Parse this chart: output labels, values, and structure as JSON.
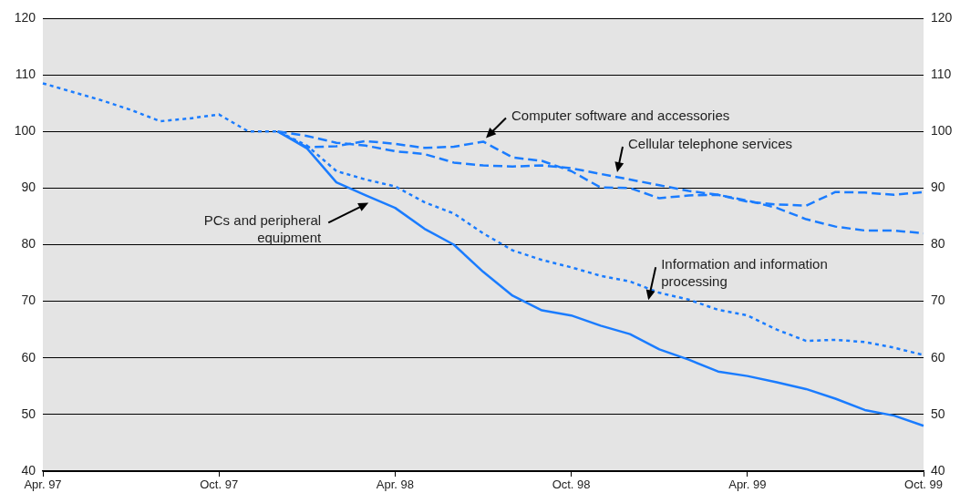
{
  "chart_data": {
    "type": "line",
    "categories": [
      "Apr. 97",
      null,
      null,
      null,
      null,
      null,
      "Oct. 97",
      null,
      null,
      null,
      null,
      null,
      "Apr. 98",
      null,
      null,
      null,
      null,
      null,
      "Oct. 98",
      null,
      null,
      null,
      null,
      null,
      "Apr. 99",
      null,
      null,
      null,
      null,
      null,
      "Oct. 99"
    ],
    "series": [
      {
        "name": "Computer software and accessories",
        "color": "#1a7cff",
        "line_style": "dashed",
        "values": [
          null,
          null,
          null,
          null,
          null,
          null,
          null,
          null,
          100,
          97.2,
          97.4,
          98.3,
          97.8,
          97.1,
          97.3,
          98.2,
          95.4,
          94.8,
          93,
          90.1,
          90,
          88.2,
          88.7,
          88.8,
          87.6,
          87.1,
          86.9,
          89.3,
          89.2,
          88.8,
          89.3
        ]
      },
      {
        "name": "Cellular telephone services",
        "color": "#1a7cff",
        "line_style": "dashed",
        "values": [
          null,
          null,
          null,
          null,
          null,
          null,
          null,
          null,
          100,
          99.2,
          98,
          97.5,
          96.5,
          96,
          94.5,
          94,
          93.8,
          94,
          93.5,
          92.5,
          91.5,
          90.5,
          89.5,
          88.8,
          87.8,
          86.5,
          84.5,
          83.2,
          82.5,
          82.5,
          82
        ]
      },
      {
        "name": "PCs and peripheral equipment",
        "color": "#1a7cff",
        "line_style": "solid",
        "values": [
          null,
          null,
          null,
          null,
          null,
          null,
          null,
          null,
          100,
          97,
          91,
          88.7,
          86.5,
          82.8,
          80,
          75.2,
          71,
          68.4,
          67.5,
          65.7,
          64.2,
          61.5,
          59.7,
          57.6,
          56.8,
          55.7,
          54.5,
          52.8,
          50.8,
          49.8,
          48
        ]
      },
      {
        "name": "Information and information processing",
        "color": "#1a7cff",
        "line_style": "dotted",
        "values": [
          108.5,
          107,
          105.5,
          103.8,
          101.8,
          102.3,
          103,
          100,
          100,
          97.5,
          93,
          91.5,
          90.3,
          87.5,
          85.5,
          82,
          79,
          77.3,
          76,
          74.5,
          73.5,
          71.5,
          70.3,
          68.5,
          67.5,
          65,
          63,
          63.2,
          62.8,
          61.8,
          60.5
        ]
      }
    ],
    "ylim": [
      40,
      120
    ],
    "yticks": [
      40,
      50,
      60,
      70,
      80,
      90,
      100,
      110,
      120
    ],
    "y2lim": [
      40,
      120
    ],
    "y2ticks": [
      40,
      50,
      60,
      70,
      80,
      90,
      100,
      110,
      120
    ],
    "grid": "y",
    "legend": false,
    "marker": "none"
  }
}
